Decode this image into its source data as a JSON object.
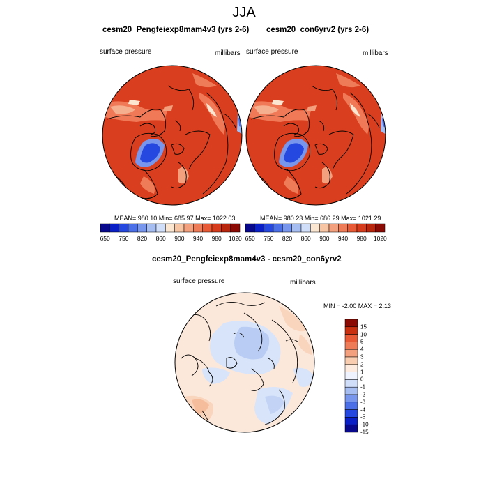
{
  "figure": {
    "title": "JJA"
  },
  "panels": {
    "top_left": {
      "title": "cesm20_Pengfeiexp8mam4v3 (yrs 2-6)",
      "left_label": "surface pressure",
      "right_label": "millibars",
      "stats": "MEAN= 980.10  Min= 685.97  Max= 1022.03"
    },
    "top_right": {
      "title": "cesm20_con6yrv2 (yrs 2-6)",
      "left_label": "surface pressure",
      "right_label": "millibars",
      "stats": "MEAN= 980.23  Min= 686.29  Max= 1021.29"
    },
    "bottom": {
      "title": "cesm20_Pengfeiexp8mam4v3 - cesm20_con6yrv2",
      "left_label": "surface pressure",
      "right_label": "millibars",
      "stats": "MIN =  -2.00 MAX =   2.13"
    }
  },
  "colorbars": {
    "field": {
      "colors": [
        "#08088c",
        "#0b1fc6",
        "#2548e0",
        "#4a6fe6",
        "#7896ec",
        "#a6bdf2",
        "#d0defa",
        "#fbe6d2",
        "#f7c4a4",
        "#f3a07e",
        "#ef7c58",
        "#e85a36",
        "#d63c1c",
        "#b8260e",
        "#8c0a04"
      ],
      "tick_labels": [
        "650",
        "750",
        "820",
        "860",
        "900",
        "940",
        "980",
        "1020"
      ]
    },
    "diff": {
      "colors": [
        "#08088c",
        "#0b1fc6",
        "#2548e0",
        "#4a6fe6",
        "#7896ec",
        "#a6bdf2",
        "#d0defa",
        "#eef3fd",
        "#fcebde",
        "#f8cdb0",
        "#f3a07e",
        "#ef7c58",
        "#e85a36",
        "#c9300f",
        "#8c0a04"
      ],
      "tick_labels": [
        "15",
        "10",
        "5",
        "4",
        "3",
        "2",
        "1",
        "0",
        "-1",
        "-2",
        "-3",
        "-4",
        "-5",
        "-10",
        "-15"
      ]
    }
  }
}
